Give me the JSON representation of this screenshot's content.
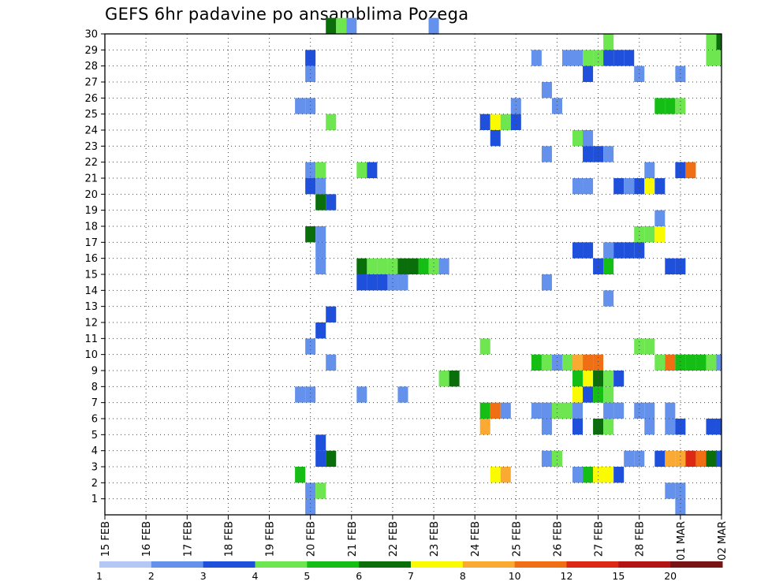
{
  "chart_data": {
    "type": "heatmap",
    "title": "GEFS 6hr padavine po ansamblima Pozega",
    "xlabel": "",
    "ylabel": "",
    "x_start": "15 FEB 00Z",
    "x_step_hours": 6,
    "x_ticks": [
      "15 FEB",
      "16 FEB",
      "17 FEB",
      "18 FEB",
      "19 FEB",
      "20 FEB",
      "21 FEB",
      "22 FEB",
      "23 FEB",
      "24 FEB",
      "25 FEB",
      "26 FEB",
      "27 FEB",
      "28 FEB",
      "01 MAR",
      "02 MAR"
    ],
    "y_ticks": [
      1,
      2,
      3,
      4,
      5,
      6,
      7,
      8,
      9,
      10,
      11,
      12,
      13,
      14,
      15,
      16,
      17,
      18,
      19,
      20,
      21,
      22,
      23,
      24,
      25,
      26,
      27,
      28,
      29,
      30
    ],
    "ylim": [
      0,
      30
    ],
    "grid": "dotted",
    "colorbar": {
      "labels": [
        "1",
        "2",
        "3",
        "4",
        "5",
        "6",
        "7",
        "8",
        "10",
        "12",
        "15",
        "20"
      ],
      "colors": [
        "#b4c8f5",
        "#6491eb",
        "#1e50dc",
        "#6ee650",
        "#14be14",
        "#0a6e0a",
        "#fafa00",
        "#faaa32",
        "#f06e14",
        "#dc2814",
        "#b41414",
        "#781414"
      ]
    },
    "cells": [
      [
        30,
        22,
        5
      ],
      [
        30,
        23,
        3
      ],
      [
        30,
        24,
        1
      ],
      [
        30,
        32,
        1
      ],
      [
        29,
        49,
        3
      ],
      [
        29,
        59,
        3
      ],
      [
        29,
        60,
        5
      ],
      [
        28,
        20,
        2
      ],
      [
        28,
        42,
        1
      ],
      [
        28,
        45,
        1
      ],
      [
        28,
        46,
        1
      ],
      [
        28,
        47,
        3
      ],
      [
        28,
        48,
        3
      ],
      [
        28,
        49,
        2
      ],
      [
        28,
        50,
        2
      ],
      [
        28,
        51,
        2
      ],
      [
        28,
        59,
        3
      ],
      [
        28,
        60,
        3
      ],
      [
        27,
        20,
        1
      ],
      [
        27,
        47,
        2
      ],
      [
        27,
        52,
        1
      ],
      [
        27,
        56,
        1
      ],
      [
        26,
        43,
        1
      ],
      [
        25,
        19,
        1
      ],
      [
        25,
        20,
        1
      ],
      [
        25,
        40,
        1
      ],
      [
        25,
        44,
        1
      ],
      [
        25,
        54,
        4
      ],
      [
        25,
        55,
        4
      ],
      [
        25,
        56,
        3
      ],
      [
        24,
        22,
        3
      ],
      [
        24,
        37,
        2
      ],
      [
        24,
        38,
        6
      ],
      [
        24,
        39,
        3
      ],
      [
        24,
        40,
        2
      ],
      [
        23,
        38,
        2
      ],
      [
        23,
        46,
        3
      ],
      [
        23,
        47,
        1
      ],
      [
        22,
        43,
        1
      ],
      [
        22,
        47,
        2
      ],
      [
        22,
        48,
        2
      ],
      [
        22,
        49,
        1
      ],
      [
        21,
        20,
        1
      ],
      [
        21,
        21,
        3
      ],
      [
        21,
        25,
        3
      ],
      [
        21,
        26,
        2
      ],
      [
        21,
        53,
        1
      ],
      [
        21,
        56,
        2
      ],
      [
        21,
        57,
        8
      ],
      [
        20,
        20,
        2
      ],
      [
        20,
        21,
        1
      ],
      [
        20,
        46,
        1
      ],
      [
        20,
        47,
        1
      ],
      [
        20,
        50,
        2
      ],
      [
        20,
        51,
        1
      ],
      [
        20,
        52,
        2
      ],
      [
        20,
        53,
        6
      ],
      [
        20,
        54,
        2
      ],
      [
        19,
        21,
        5
      ],
      [
        19,
        22,
        2
      ],
      [
        18,
        54,
        1
      ],
      [
        17,
        20,
        5
      ],
      [
        17,
        21,
        1
      ],
      [
        17,
        52,
        3
      ],
      [
        17,
        53,
        3
      ],
      [
        17,
        54,
        6
      ],
      [
        16,
        21,
        1
      ],
      [
        16,
        46,
        2
      ],
      [
        16,
        47,
        2
      ],
      [
        16,
        49,
        1
      ],
      [
        16,
        50,
        2
      ],
      [
        16,
        51,
        2
      ],
      [
        16,
        52,
        2
      ],
      [
        15,
        21,
        1
      ],
      [
        15,
        25,
        5
      ],
      [
        15,
        26,
        3
      ],
      [
        15,
        27,
        3
      ],
      [
        15,
        28,
        3
      ],
      [
        15,
        29,
        5
      ],
      [
        15,
        30,
        5
      ],
      [
        15,
        31,
        4
      ],
      [
        15,
        32,
        3
      ],
      [
        15,
        33,
        1
      ],
      [
        15,
        48,
        2
      ],
      [
        15,
        49,
        4
      ],
      [
        15,
        55,
        2
      ],
      [
        15,
        56,
        2
      ],
      [
        14,
        25,
        2
      ],
      [
        14,
        26,
        2
      ],
      [
        14,
        27,
        2
      ],
      [
        14,
        28,
        1
      ],
      [
        14,
        29,
        1
      ],
      [
        14,
        43,
        1
      ],
      [
        13,
        49,
        1
      ],
      [
        12,
        22,
        2
      ],
      [
        11,
        21,
        2
      ],
      [
        10,
        20,
        1
      ],
      [
        10,
        37,
        3
      ],
      [
        10,
        52,
        3
      ],
      [
        10,
        53,
        3
      ],
      [
        9,
        22,
        1
      ],
      [
        9,
        42,
        4
      ],
      [
        9,
        43,
        3
      ],
      [
        9,
        44,
        1
      ],
      [
        9,
        45,
        3
      ],
      [
        9,
        46,
        7
      ],
      [
        9,
        47,
        8
      ],
      [
        9,
        48,
        8
      ],
      [
        9,
        54,
        3
      ],
      [
        9,
        55,
        8
      ],
      [
        9,
        56,
        4
      ],
      [
        9,
        57,
        4
      ],
      [
        9,
        58,
        4
      ],
      [
        9,
        59,
        3
      ],
      [
        9,
        60,
        1
      ],
      [
        8,
        33,
        3
      ],
      [
        8,
        34,
        5
      ],
      [
        8,
        46,
        4
      ],
      [
        8,
        47,
        6
      ],
      [
        8,
        48,
        5
      ],
      [
        8,
        49,
        3
      ],
      [
        8,
        50,
        2
      ],
      [
        7,
        19,
        1
      ],
      [
        7,
        20,
        1
      ],
      [
        7,
        25,
        1
      ],
      [
        7,
        29,
        1
      ],
      [
        7,
        46,
        6
      ],
      [
        7,
        47,
        2
      ],
      [
        7,
        48,
        4
      ],
      [
        7,
        49,
        3
      ],
      [
        6,
        37,
        4
      ],
      [
        6,
        38,
        8
      ],
      [
        6,
        39,
        1
      ],
      [
        6,
        42,
        1
      ],
      [
        6,
        43,
        1
      ],
      [
        6,
        44,
        3
      ],
      [
        6,
        45,
        3
      ],
      [
        6,
        46,
        1
      ],
      [
        6,
        49,
        1
      ],
      [
        6,
        50,
        1
      ],
      [
        6,
        52,
        1
      ],
      [
        6,
        53,
        1
      ],
      [
        6,
        55,
        1
      ],
      [
        5,
        37,
        7
      ],
      [
        5,
        43,
        1
      ],
      [
        5,
        46,
        2
      ],
      [
        5,
        48,
        5
      ],
      [
        5,
        49,
        3
      ],
      [
        5,
        53,
        1
      ],
      [
        5,
        55,
        1
      ],
      [
        5,
        56,
        2
      ],
      [
        5,
        59,
        2
      ],
      [
        5,
        60,
        2
      ],
      [
        4,
        21,
        2
      ],
      [
        3,
        21,
        2
      ],
      [
        3,
        22,
        5
      ],
      [
        3,
        43,
        1
      ],
      [
        3,
        44,
        3
      ],
      [
        3,
        51,
        1
      ],
      [
        3,
        52,
        1
      ],
      [
        3,
        54,
        2
      ],
      [
        3,
        55,
        7
      ],
      [
        3,
        56,
        7
      ],
      [
        3,
        57,
        9
      ],
      [
        3,
        58,
        8
      ],
      [
        3,
        59,
        5
      ],
      [
        3,
        60,
        2
      ],
      [
        2,
        19,
        4
      ],
      [
        2,
        38,
        6
      ],
      [
        2,
        39,
        7
      ],
      [
        2,
        46,
        1
      ],
      [
        2,
        47,
        4
      ],
      [
        2,
        48,
        6
      ],
      [
        2,
        49,
        6
      ],
      [
        2,
        50,
        2
      ],
      [
        1,
        20,
        1
      ],
      [
        1,
        21,
        3
      ],
      [
        1,
        55,
        1
      ],
      [
        1,
        56,
        1
      ],
      [
        0,
        20,
        1
      ],
      [
        0,
        56,
        1
      ]
    ]
  }
}
